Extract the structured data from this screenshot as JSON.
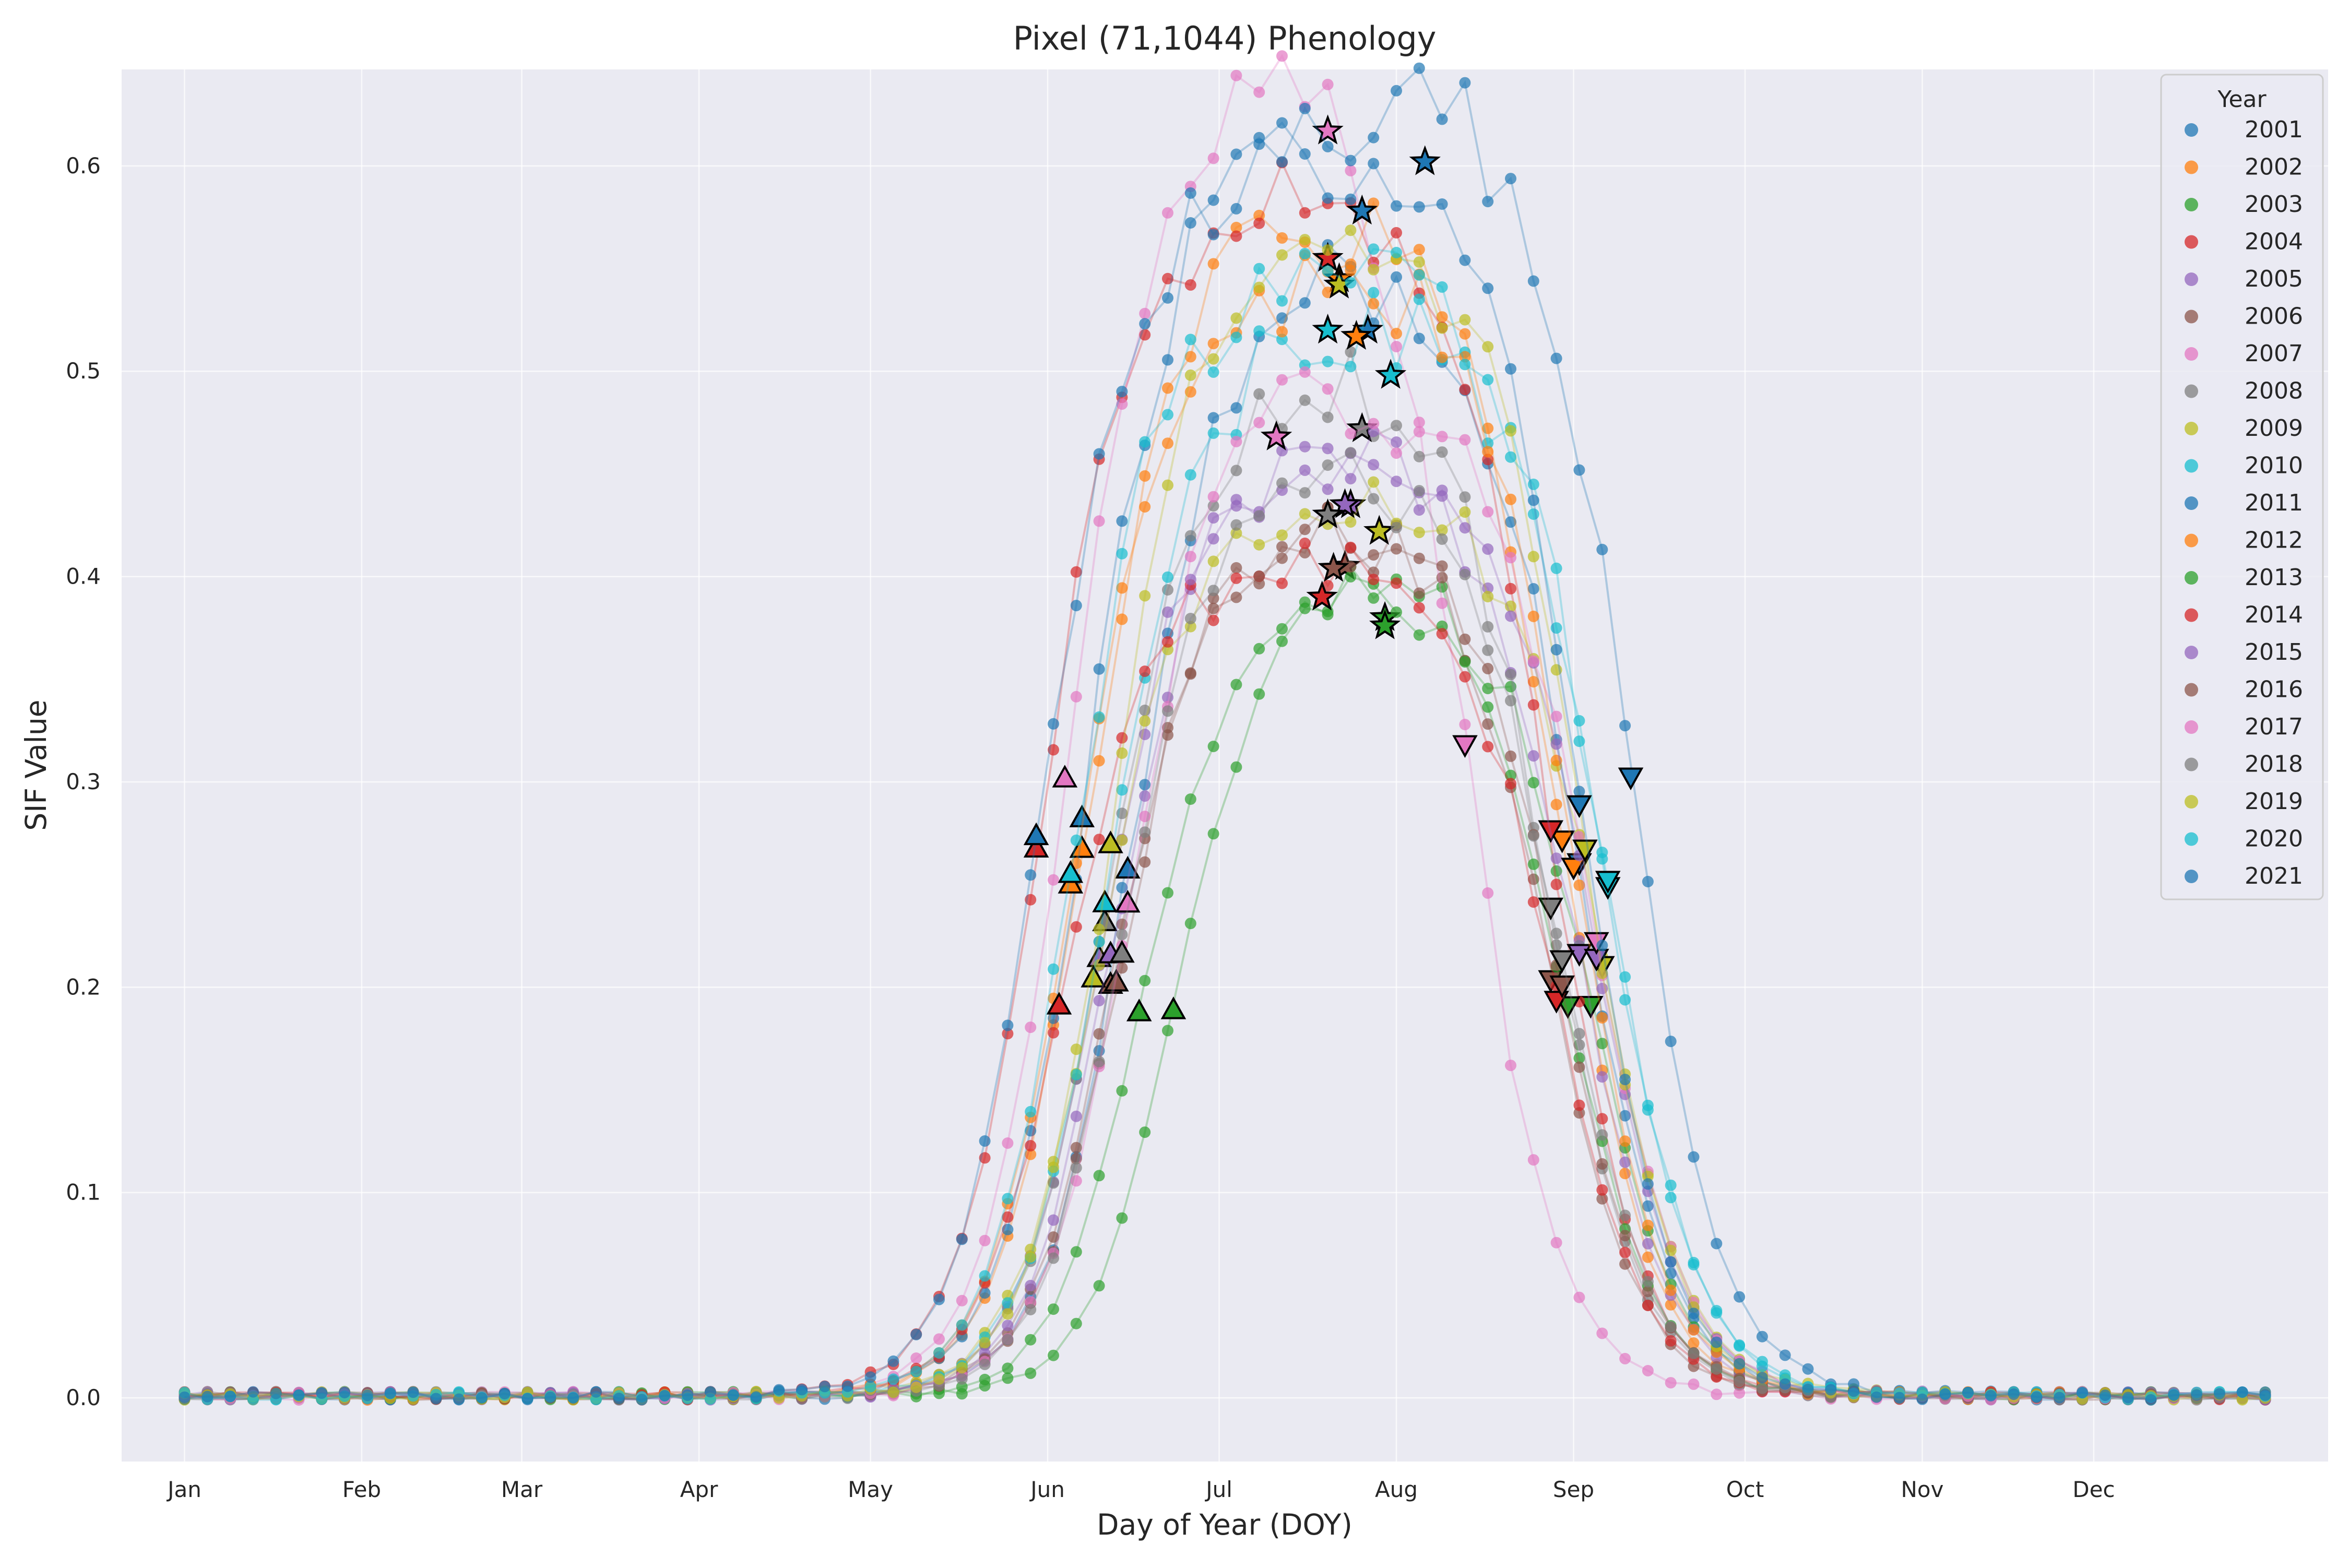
{
  "chart_data": {
    "type": "scatter",
    "title": "Pixel (71,1044) Phenology",
    "xlabel": "Day of Year (DOY)",
    "ylabel": "SIF Value",
    "xlim": [
      -10,
      376
    ],
    "ylim": [
      -0.031,
      0.647
    ],
    "grid": true,
    "background": "#eaeaf2",
    "x_ticks": [
      {
        "value": 1,
        "label": "Jan"
      },
      {
        "value": 32,
        "label": "Feb"
      },
      {
        "value": 60,
        "label": "Mar"
      },
      {
        "value": 91,
        "label": "Apr"
      },
      {
        "value": 121,
        "label": "May"
      },
      {
        "value": 152,
        "label": "Jun"
      },
      {
        "value": 182,
        "label": "Jul"
      },
      {
        "value": 213,
        "label": "Aug"
      },
      {
        "value": 244,
        "label": "Sep"
      },
      {
        "value": 274,
        "label": "Oct"
      },
      {
        "value": 305,
        "label": "Nov"
      },
      {
        "value": 335,
        "label": "Dec"
      }
    ],
    "y_ticks": [
      {
        "value": 0,
        "label": "0.0"
      },
      {
        "value": 0.1,
        "label": "0.1"
      },
      {
        "value": 0.2,
        "label": "0.2"
      },
      {
        "value": 0.3,
        "label": "0.3"
      },
      {
        "value": 0.4,
        "label": "0.4"
      },
      {
        "value": 0.5,
        "label": "0.5"
      },
      {
        "value": 0.6,
        "label": "0.6"
      }
    ],
    "legend": {
      "title": "Year",
      "position": "top-right"
    },
    "markers": {
      "start": "triangle-up",
      "peak": "star",
      "end": "triangle-down"
    },
    "series": [
      {
        "name": "2001",
        "color": "#1f77b4",
        "sos": 166,
        "pos": 208,
        "eos": 245,
        "peak": 0.52,
        "base": 0.001
      },
      {
        "name": "2002",
        "color": "#ff7f0e",
        "sos": 158,
        "pos": 203,
        "eos": 242,
        "peak": 0.545,
        "base": 0.001
      },
      {
        "name": "2003",
        "color": "#2ca02c",
        "sos": 168,
        "pos": 211,
        "eos": 247,
        "peak": 0.38,
        "base": 0.001
      },
      {
        "name": "2004",
        "color": "#d62728",
        "sos": 150,
        "pos": 201,
        "eos": 240,
        "peak": 0.555,
        "base": 0.001
      },
      {
        "name": "2005",
        "color": "#9467bd",
        "sos": 161,
        "pos": 205,
        "eos": 245,
        "peak": 0.435,
        "base": 0.001
      },
      {
        "name": "2006",
        "color": "#8c564b",
        "sos": 163,
        "pos": 204,
        "eos": 240,
        "peak": 0.405,
        "base": 0.001
      },
      {
        "name": "2007",
        "color": "#e377c2",
        "sos": 155,
        "pos": 201,
        "eos": 225,
        "peak": 0.617,
        "base": 0.001
      },
      {
        "name": "2008",
        "color": "#7f7f7f",
        "sos": 162,
        "pos": 207,
        "eos": 240,
        "peak": 0.472,
        "base": 0.001
      },
      {
        "name": "2009",
        "color": "#bcbd22",
        "sos": 160,
        "pos": 210,
        "eos": 249,
        "peak": 0.422,
        "base": 0.001
      },
      {
        "name": "2010",
        "color": "#17becf",
        "sos": 162,
        "pos": 212,
        "eos": 250,
        "peak": 0.498,
        "base": 0.001
      },
      {
        "name": "2011",
        "color": "#1f77b4",
        "sos": 158,
        "pos": 218,
        "eos": 254,
        "peak": 0.602,
        "base": 0.001
      },
      {
        "name": "2012",
        "color": "#ff7f0e",
        "sos": 156,
        "pos": 206,
        "eos": 244,
        "peak": 0.517,
        "base": 0.001
      },
      {
        "name": "2013",
        "color": "#2ca02c",
        "sos": 174,
        "pos": 211,
        "eos": 243,
        "peak": 0.376,
        "base": 0.001
      },
      {
        "name": "2014",
        "color": "#d62728",
        "sos": 154,
        "pos": 200,
        "eos": 241,
        "peak": 0.39,
        "base": 0.001
      },
      {
        "name": "2015",
        "color": "#9467bd",
        "sos": 163,
        "pos": 204,
        "eos": 248,
        "peak": 0.435,
        "base": 0.001
      },
      {
        "name": "2016",
        "color": "#8c564b",
        "sos": 164,
        "pos": 202,
        "eos": 242,
        "peak": 0.404,
        "base": 0.001
      },
      {
        "name": "2017",
        "color": "#e377c2",
        "sos": 166,
        "pos": 192,
        "eos": 248,
        "peak": 0.468,
        "base": 0.001
      },
      {
        "name": "2018",
        "color": "#7f7f7f",
        "sos": 165,
        "pos": 201,
        "eos": 242,
        "peak": 0.43,
        "base": 0.001
      },
      {
        "name": "2019",
        "color": "#bcbd22",
        "sos": 163,
        "pos": 203,
        "eos": 246,
        "peak": 0.542,
        "base": 0.001
      },
      {
        "name": "2020",
        "color": "#17becf",
        "sos": 156,
        "pos": 201,
        "eos": 250,
        "peak": 0.52,
        "base": 0.001
      },
      {
        "name": "2021",
        "color": "#1f77b4",
        "sos": 150,
        "pos": 207,
        "eos": 245,
        "peak": 0.578,
        "base": 0.001
      }
    ]
  }
}
